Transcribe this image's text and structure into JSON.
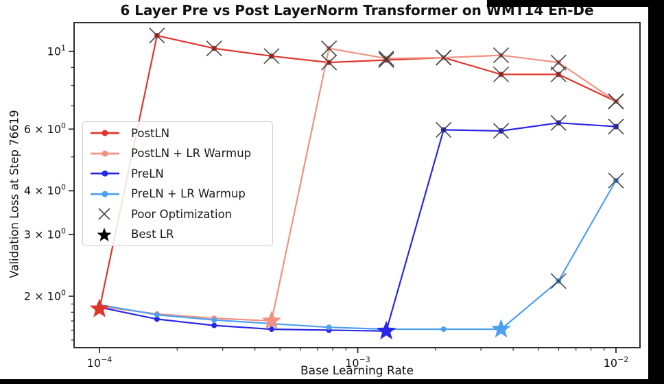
{
  "figure": {
    "title": "6 Layer Pre vs Post LayerNorm Transformer on WMT14 En-De",
    "xlabel": "Base Learning Rate",
    "ylabel": "Validation Loss at Step 76619"
  },
  "chart_data": {
    "type": "line",
    "title": "6 Layer Pre vs Post LayerNorm Transformer on WMT14 En-De",
    "xlabel": "Base Learning Rate",
    "ylabel": "Validation Loss at Step 76619",
    "x_scale": "log",
    "y_scale": "log",
    "xlim": [
      8e-05,
      0.0124
    ],
    "ylim": [
      1.43,
      12.1
    ],
    "grid": false,
    "x": [
      0.0001,
      0.000167,
      0.000278,
      0.000464,
      0.000774,
      0.00129,
      0.00215,
      0.00359,
      0.00599,
      0.01
    ],
    "series": [
      {
        "name": "PostLN",
        "color": "#e0352b",
        "values": [
          1.84,
          11.1,
          10.2,
          9.7,
          9.3,
          9.45,
          9.6,
          8.6,
          8.6,
          7.2
        ],
        "poor_optimization_indices": [
          1,
          2,
          3,
          4,
          5,
          6,
          7,
          8,
          9
        ],
        "best_lr_index": 0,
        "best_lr": 0.0001
      },
      {
        "name": "PostLN + LR Warmup",
        "color": "#f2917f",
        "values": [
          1.87,
          1.78,
          1.73,
          1.7,
          10.2,
          9.55,
          9.6,
          9.75,
          9.3,
          7.2
        ],
        "poor_optimization_indices": [
          4,
          5,
          6,
          7,
          8,
          9
        ],
        "best_lr_index": 3,
        "best_lr": 0.000464
      },
      {
        "name": "PreLN",
        "color": "#2727e6",
        "values": [
          1.86,
          1.72,
          1.65,
          1.61,
          1.6,
          1.59,
          5.97,
          5.93,
          6.25,
          6.1
        ],
        "poor_optimization_indices": [
          6,
          7,
          8,
          9
        ],
        "best_lr_index": 5,
        "best_lr": 0.00129
      },
      {
        "name": "PreLN + LR Warmup",
        "color": "#4da0f0",
        "values": [
          1.89,
          1.77,
          1.71,
          1.67,
          1.63,
          1.61,
          1.61,
          1.61,
          2.21,
          4.28
        ],
        "poor_optimization_indices": [
          8,
          9
        ],
        "best_lr_index": 7,
        "best_lr": 0.00359
      }
    ],
    "x_ticks": [
      {
        "value": 0.0001,
        "exp": "−4"
      },
      {
        "value": 0.001,
        "exp": "−3"
      },
      {
        "value": 0.01,
        "exp": "−2"
      }
    ],
    "y_ticks": [
      {
        "value": 10,
        "mantissa": "",
        "exp": "1"
      },
      {
        "value": 6,
        "mantissa": "6",
        "exp": "0"
      },
      {
        "value": 4,
        "mantissa": "4",
        "exp": "0"
      },
      {
        "value": 3,
        "mantissa": "3",
        "exp": "0"
      },
      {
        "value": 2,
        "mantissa": "2",
        "exp": "0"
      }
    ],
    "marker_styles": {
      "poor_optimization": {
        "symbol": "x",
        "color": "#333333"
      },
      "best_lr": {
        "symbol": "star",
        "color": "series-color"
      }
    },
    "legend": {
      "position": "center-left",
      "entries": [
        {
          "label": "PostLN",
          "swatch": "line",
          "color": "#e0352b"
        },
        {
          "label": "PostLN + LR Warmup",
          "swatch": "line",
          "color": "#f2917f"
        },
        {
          "label": "PreLN",
          "swatch": "line",
          "color": "#2727e6"
        },
        {
          "label": "PreLN + LR Warmup",
          "swatch": "line",
          "color": "#4da0f0"
        },
        {
          "label": "Poor Optimization",
          "swatch": "x",
          "color": "#333333"
        },
        {
          "label": "Best LR",
          "swatch": "star",
          "color": "#000000"
        }
      ]
    }
  }
}
